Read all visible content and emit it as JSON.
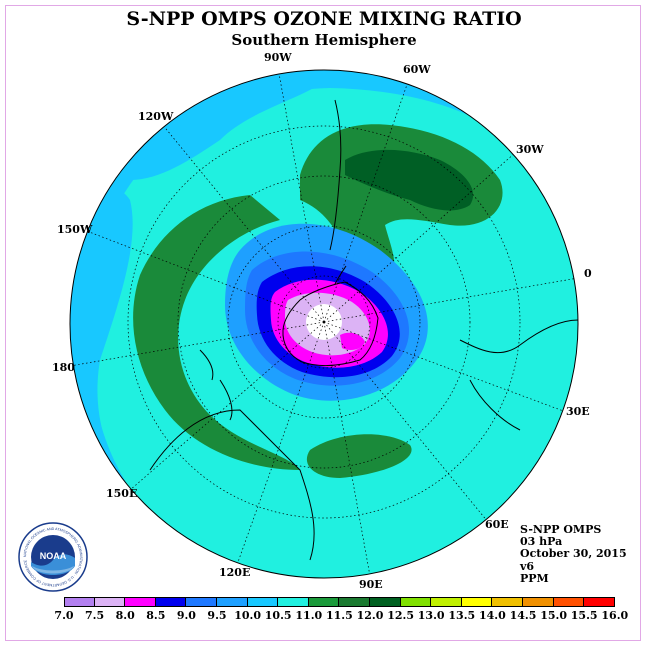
{
  "title": "S-NPP OMPS OZONE MIXING RATIO",
  "subtitle": "Southern Hemisphere",
  "longitude_labels": {
    "w90": "90W",
    "w60": "60W",
    "w120": "120W",
    "w30": "30W",
    "w150": "150W",
    "e0": "0",
    "e180": "180",
    "e30": "30E",
    "e150": "150E",
    "e60": "60E",
    "e120": "120E",
    "e90": "90E"
  },
  "info": {
    "instrument": "S-NPP OMPS",
    "level": "03 hPa",
    "date": "October 30, 2015",
    "version": "v6",
    "units": "PPM"
  },
  "colorbar": {
    "ticks": [
      "7.0",
      "7.5",
      "8.0",
      "8.5",
      "9.0",
      "9.5",
      "10.0",
      "10.5",
      "11.0",
      "11.5",
      "12.0",
      "12.5",
      "13.0",
      "13.5",
      "14.0",
      "14.5",
      "15.0",
      "15.5",
      "16.0"
    ],
    "colors": [
      "#b380f0",
      "#dcb3f5",
      "#ff00ff",
      "#0000ee",
      "#1e78ff",
      "#1ea0ff",
      "#18c8ff",
      "#20f0e0",
      "#1a9a3a",
      "#1a7a30",
      "#006020",
      "#80e000",
      "#c0f000",
      "#ffff00",
      "#f0c000",
      "#f09000",
      "#ff5000",
      "#ff0000",
      "#8b4513"
    ]
  },
  "logo": {
    "text": "NOAA",
    "ring_text": "NATIONAL OCEANIC AND ATMOSPHERIC ADMINISTRATION · U.S. DEPARTMENT OF COMMERCE"
  },
  "map_colors": {
    "background": "#18c8ff",
    "band": "#20f0e0",
    "green": "#1a8a3a",
    "dark_green": "#005f25",
    "blue1": "#1ea0ff",
    "blue2": "#1e78ff",
    "blue3": "#0000ee",
    "magenta": "#ff00ff",
    "lavender": "#dcb3f5",
    "white": "#ffffff"
  }
}
